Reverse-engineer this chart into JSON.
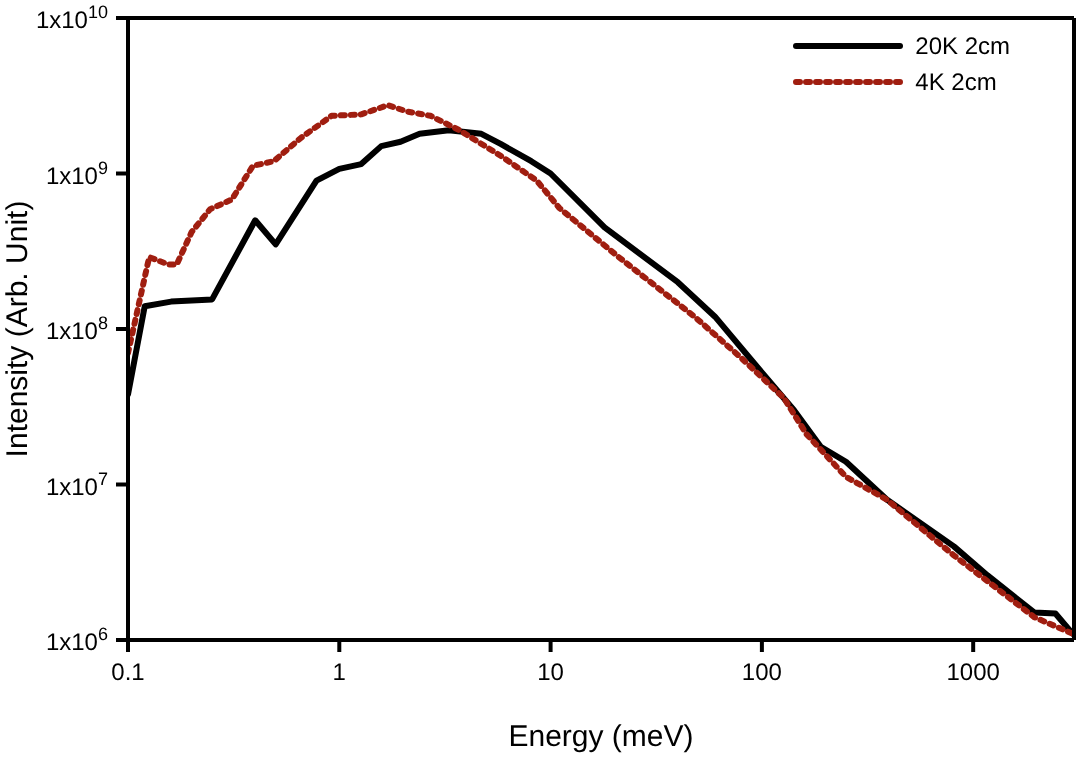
{
  "chart_data": {
    "type": "line",
    "xlabel": "Energy (meV)",
    "ylabel": "Intensity (Arb. Unit)",
    "log": "xy",
    "xlim": [
      0.1,
      3000
    ],
    "ylim": [
      1000000,
      10000000000
    ],
    "xticks": [
      0.1,
      1,
      10,
      100,
      1000
    ],
    "yticks": [
      {
        "value": 1000000,
        "label": "1x10$^{6}$"
      },
      {
        "value": 10000000,
        "label": "1x10$^{7}$"
      },
      {
        "value": 100000000,
        "label": "1x10$^{8}$"
      },
      {
        "value": 1000000000,
        "label": "1x10$^{9}$"
      },
      {
        "value": 10000000000,
        "label": "1x10$^{10}$"
      }
    ],
    "grid": false,
    "legend": "top right",
    "marker": "none",
    "series": [
      {
        "name": "20K 2cm",
        "color": "#000000",
        "line_style": "solid",
        "x": [
          0.1,
          0.12,
          0.16,
          0.25,
          0.4,
          0.5,
          0.78,
          1.0,
          1.27,
          1.58,
          1.95,
          2.4,
          3.3,
          4.7,
          5.8,
          8.1,
          10,
          18,
          40,
          60,
          94,
          142,
          190,
          250,
          390,
          810,
          1170,
          1950,
          2450,
          2950
        ],
        "values": [
          38000000,
          140000000,
          150000000,
          155000000,
          500000000,
          350000000,
          900000000,
          1070000000,
          1150000000,
          1500000000,
          1600000000,
          1800000000,
          1900000000,
          1800000000,
          1550000000,
          1200000000,
          1000000000,
          450000000,
          200000000,
          120000000,
          58000000,
          30000000,
          17500000,
          14000000,
          8000000,
          4000000,
          2600000,
          1500000,
          1480000,
          1100000
        ]
      },
      {
        "name": "4K 2cm",
        "color": "#a01e10",
        "line_style": "dotted",
        "x": [
          0.1,
          0.126,
          0.155,
          0.17,
          0.2,
          0.245,
          0.31,
          0.39,
          0.49,
          0.66,
          0.92,
          1.27,
          1.7,
          2.1,
          2.7,
          3.7,
          5.8,
          8.6,
          11,
          21,
          48,
          79,
          127,
          163,
          250,
          390,
          810,
          1950,
          2950
        ],
        "values": [
          70000000,
          290000000,
          260000000,
          260000000,
          420000000,
          590000000,
          680000000,
          1120000000,
          1200000000,
          1700000000,
          2350000000,
          2400000000,
          2750000000,
          2500000000,
          2350000000,
          1900000000,
          1300000000,
          900000000,
          600000000,
          290000000,
          120000000,
          66000000,
          36000000,
          21000000,
          11200000,
          8000000,
          3500000,
          1400000,
          1100000
        ]
      }
    ]
  }
}
